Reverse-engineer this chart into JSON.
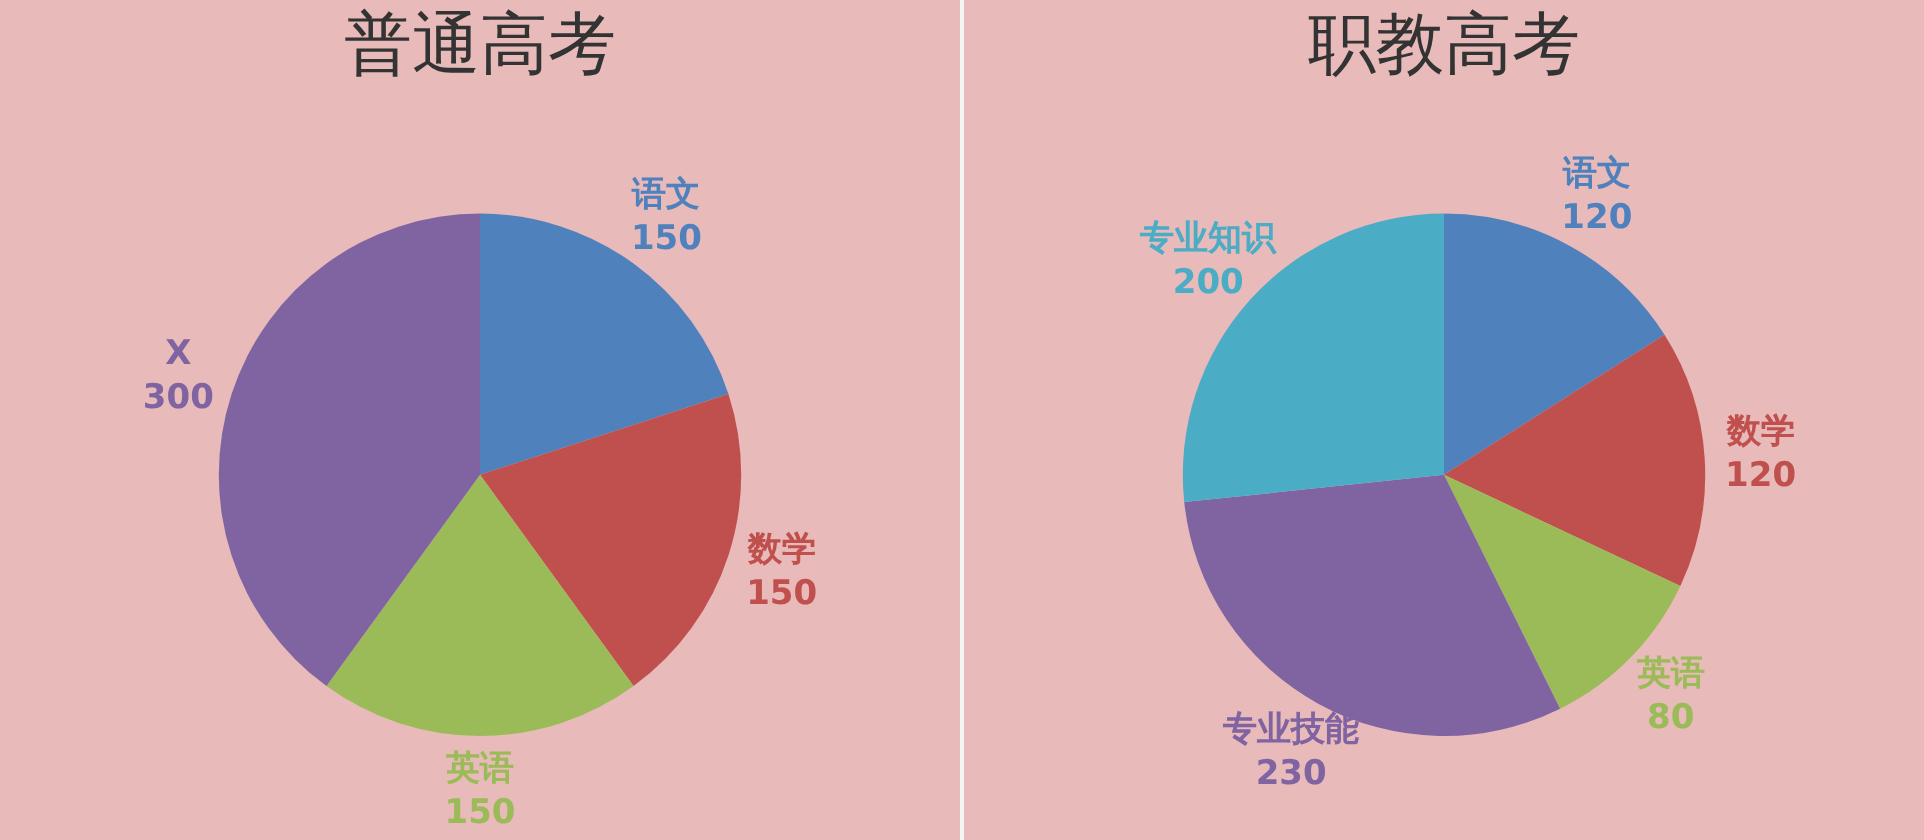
{
  "chart_data": [
    {
      "type": "pie",
      "title": "普通高考",
      "categories": [
        "语文",
        "数学",
        "英语",
        "X"
      ],
      "values": [
        150,
        150,
        150,
        300
      ],
      "colors": [
        "#4f81bd",
        "#c0504d",
        "#9bbb59",
        "#8064a2"
      ],
      "data_labels": true,
      "legend": false
    },
    {
      "type": "pie",
      "title": "职教高考",
      "categories": [
        "语文",
        "数学",
        "英语",
        "专业技能",
        "专业知识"
      ],
      "values": [
        120,
        120,
        80,
        230,
        200
      ],
      "colors": [
        "#4f81bd",
        "#c0504d",
        "#9bbb59",
        "#8064a2",
        "#4bacc6"
      ],
      "data_labels": true,
      "legend": false
    }
  ]
}
